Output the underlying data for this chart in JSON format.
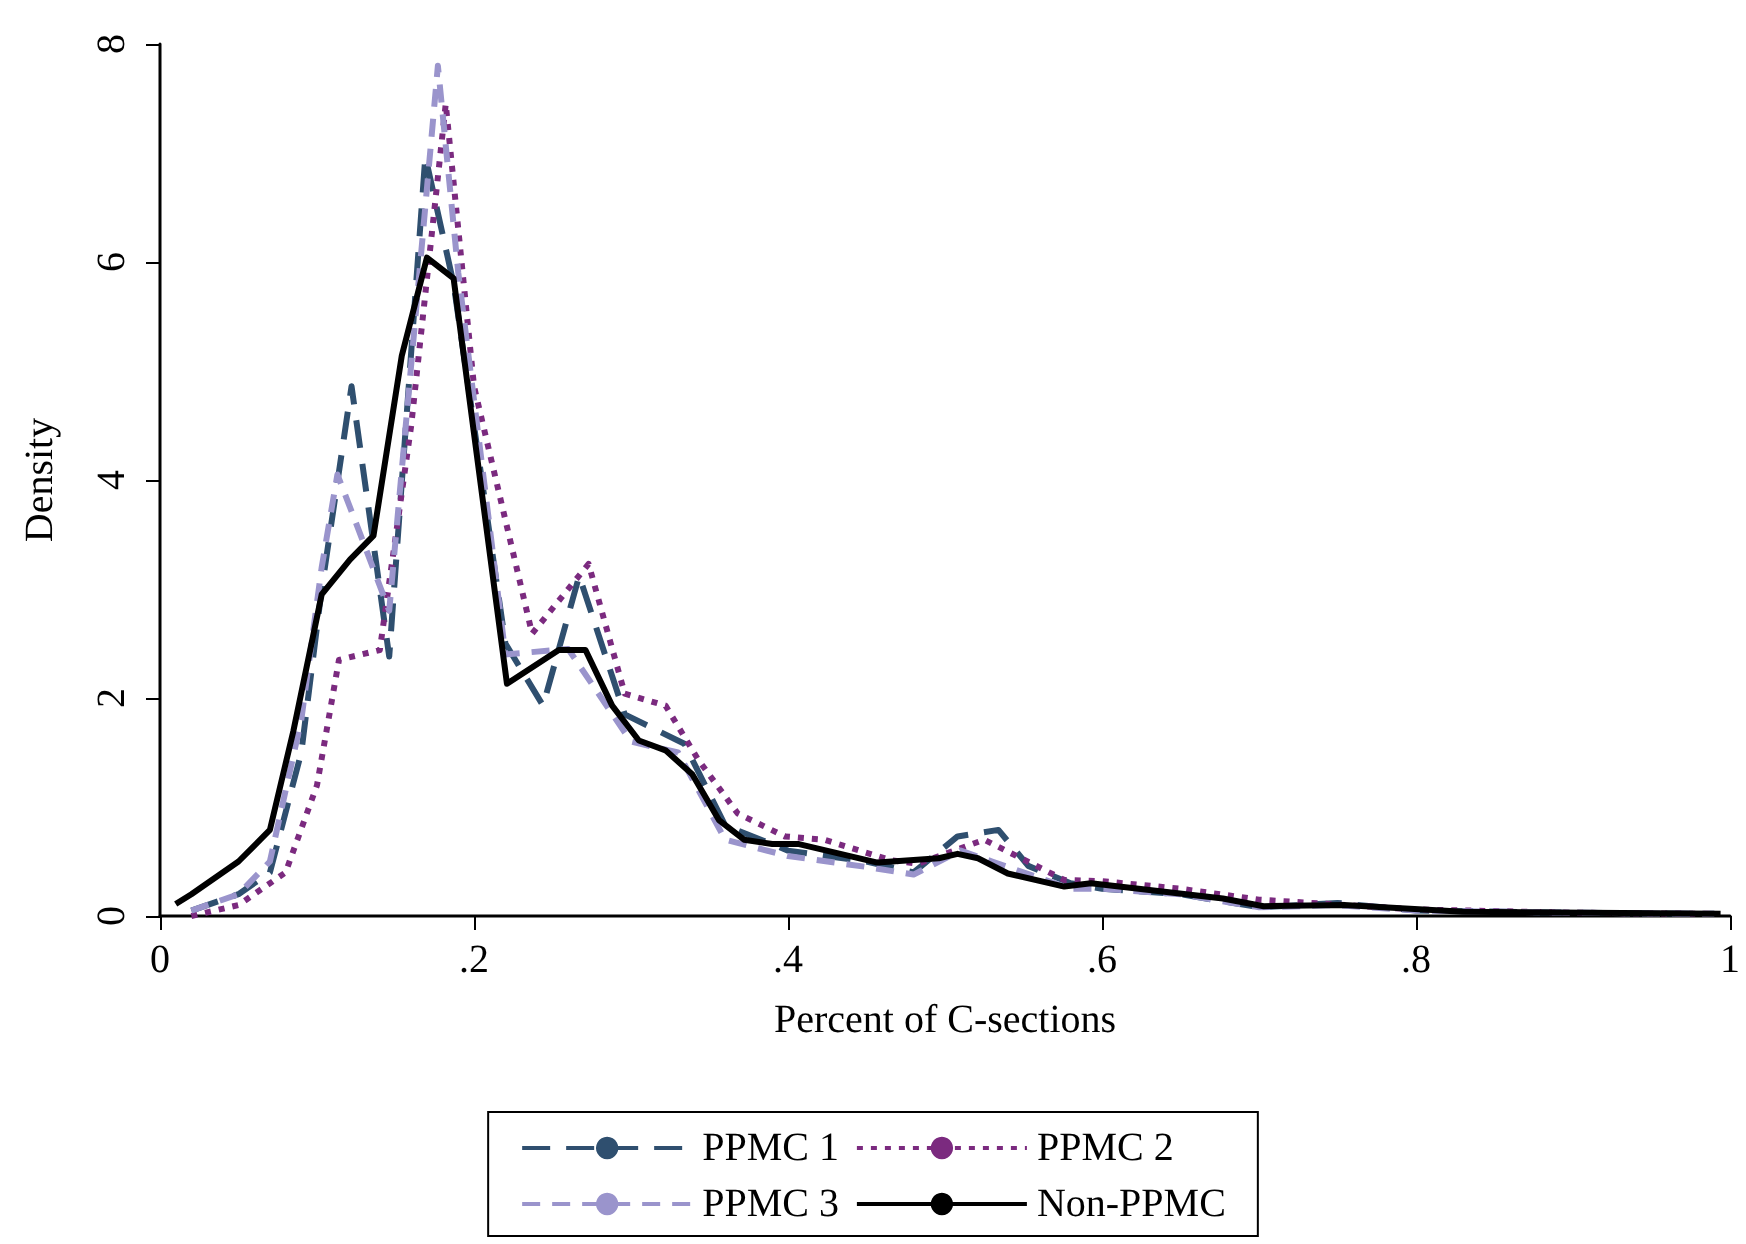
{
  "chart_data": {
    "type": "line",
    "xlabel": "Percent of C-sections",
    "ylabel": "Density",
    "xlim": [
      0,
      1
    ],
    "ylim": [
      0,
      8
    ],
    "xticks": [
      0,
      {
        "value": 0.2,
        "label": ".2"
      },
      {
        "value": 0.4,
        "label": ".4"
      },
      {
        "value": 0.6,
        "label": ".6"
      },
      {
        "value": 0.8,
        "label": ".8"
      },
      1
    ],
    "yticks": [
      0,
      2,
      4,
      6,
      8
    ],
    "grid": false,
    "legend": "bottom",
    "marker": "none",
    "series": [
      {
        "name": "PPMC 1",
        "color": "#2f4f6f",
        "line_style": "dashed",
        "x": [
          0.02,
          0.05,
          0.07,
          0.09,
          0.103,
          0.122,
          0.146,
          0.169,
          0.187,
          0.22,
          0.244,
          0.267,
          0.296,
          0.334,
          0.36,
          0.4,
          0.45,
          0.48,
          0.508,
          0.534,
          0.553,
          0.58,
          0.6,
          0.65,
          0.7,
          0.75,
          0.8,
          0.9,
          0.99
        ],
        "values": [
          0.05,
          0.2,
          0.4,
          1.5,
          3.0,
          4.86,
          2.38,
          6.97,
          5.8,
          2.5,
          1.93,
          3.12,
          1.85,
          1.58,
          0.83,
          0.6,
          0.5,
          0.4,
          0.73,
          0.79,
          0.46,
          0.3,
          0.25,
          0.2,
          0.08,
          0.12,
          0.05,
          0.03,
          0.02
        ]
      },
      {
        "name": "PPMC 2",
        "color": "#7b2a7f",
        "line_style": "dotted",
        "x": [
          0.02,
          0.05,
          0.08,
          0.1,
          0.114,
          0.14,
          0.16,
          0.182,
          0.2,
          0.237,
          0.273,
          0.296,
          0.322,
          0.343,
          0.368,
          0.398,
          0.423,
          0.466,
          0.483,
          0.525,
          0.576,
          0.6,
          0.65,
          0.7,
          0.8,
          0.9,
          0.99
        ],
        "values": [
          0.0,
          0.1,
          0.4,
          1.2,
          2.35,
          2.44,
          4.5,
          7.45,
          4.86,
          2.59,
          3.23,
          2.04,
          1.93,
          1.43,
          0.94,
          0.73,
          0.7,
          0.51,
          0.48,
          0.7,
          0.33,
          0.32,
          0.25,
          0.15,
          0.06,
          0.03,
          0.02
        ]
      },
      {
        "name": "PPMC 3",
        "color": "#9a94cc",
        "line_style": "dashed",
        "x": [
          0.02,
          0.05,
          0.07,
          0.09,
          0.103,
          0.113,
          0.125,
          0.146,
          0.177,
          0.19,
          0.22,
          0.26,
          0.3,
          0.33,
          0.36,
          0.4,
          0.45,
          0.48,
          0.51,
          0.53,
          0.58,
          0.6,
          0.65,
          0.7,
          0.75,
          0.8,
          0.9,
          0.99
        ],
        "values": [
          0.05,
          0.2,
          0.5,
          1.8,
          3.2,
          4.05,
          3.6,
          2.8,
          7.8,
          5.9,
          2.4,
          2.45,
          1.6,
          1.5,
          0.7,
          0.55,
          0.45,
          0.38,
          0.6,
          0.5,
          0.25,
          0.25,
          0.2,
          0.08,
          0.1,
          0.05,
          0.03,
          0.02
        ]
      },
      {
        "name": "Non-PPMC",
        "color": "#000000",
        "line_style": "solid",
        "x": [
          0.01,
          0.02,
          0.05,
          0.07,
          0.085,
          0.103,
          0.121,
          0.136,
          0.154,
          0.17,
          0.187,
          0.221,
          0.254,
          0.271,
          0.288,
          0.305,
          0.322,
          0.339,
          0.356,
          0.372,
          0.39,
          0.407,
          0.457,
          0.496,
          0.508,
          0.521,
          0.54,
          0.576,
          0.593,
          0.677,
          0.703,
          0.754,
          0.83,
          0.994
        ],
        "values": [
          0.11,
          0.2,
          0.5,
          0.79,
          1.7,
          2.95,
          3.27,
          3.49,
          5.14,
          6.04,
          5.85,
          2.13,
          2.44,
          2.44,
          1.93,
          1.61,
          1.52,
          1.3,
          0.88,
          0.7,
          0.66,
          0.66,
          0.49,
          0.53,
          0.57,
          0.53,
          0.39,
          0.27,
          0.3,
          0.16,
          0.09,
          0.1,
          0.04,
          0.02
        ]
      }
    ]
  }
}
